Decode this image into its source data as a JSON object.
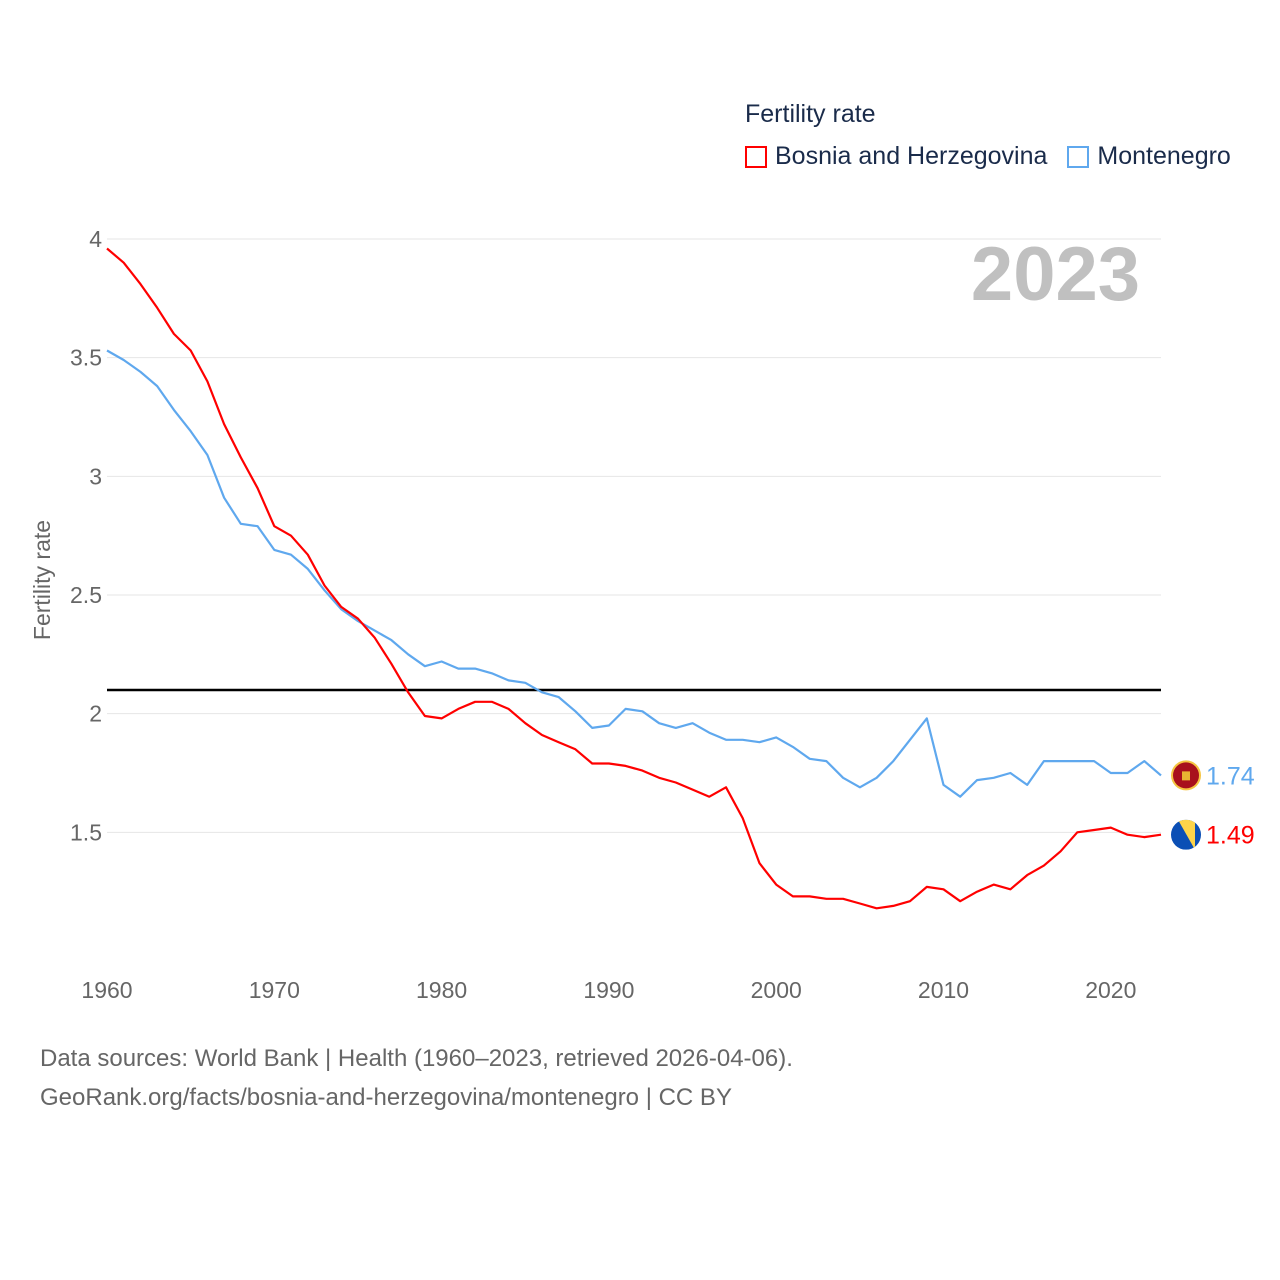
{
  "chart_data": {
    "type": "line",
    "title": "Fertility rate",
    "xlabel": "",
    "ylabel": "Fertility rate",
    "year_watermark": "2023",
    "xlim": [
      1960,
      2023
    ],
    "ylim": [
      0.92,
      4.0
    ],
    "x_ticks": [
      1960,
      1970,
      1980,
      1990,
      2000,
      2010,
      2020
    ],
    "y_ticks": [
      1.5,
      2,
      2.5,
      3,
      3.5,
      4
    ],
    "y_tick_labels": [
      "1.5",
      "2",
      "2.5",
      "3",
      "3.5",
      "4"
    ],
    "x_tick_labels": [
      "1960",
      "1970",
      "1980",
      "1990",
      "2000",
      "2010",
      "2020"
    ],
    "grid": true,
    "legend_position": "top-right",
    "reference_line": 2.1,
    "x": [
      1960,
      1961,
      1962,
      1963,
      1964,
      1965,
      1966,
      1967,
      1968,
      1969,
      1970,
      1971,
      1972,
      1973,
      1974,
      1975,
      1976,
      1977,
      1978,
      1979,
      1980,
      1981,
      1982,
      1983,
      1984,
      1985,
      1986,
      1987,
      1988,
      1989,
      1990,
      1991,
      1992,
      1993,
      1994,
      1995,
      1996,
      1997,
      1998,
      1999,
      2000,
      2001,
      2002,
      2003,
      2004,
      2005,
      2006,
      2007,
      2008,
      2009,
      2010,
      2011,
      2012,
      2013,
      2014,
      2015,
      2016,
      2017,
      2018,
      2019,
      2020,
      2021,
      2022,
      2023
    ],
    "series": [
      {
        "name": "Bosnia and Herzegovina",
        "color": "#ff0000",
        "end_label": "1.49",
        "values": [
          3.96,
          3.9,
          3.81,
          3.71,
          3.6,
          3.53,
          3.4,
          3.22,
          3.08,
          2.95,
          2.79,
          2.75,
          2.67,
          2.54,
          2.45,
          2.4,
          2.32,
          2.21,
          2.09,
          1.99,
          1.98,
          2.02,
          2.05,
          2.05,
          2.02,
          1.96,
          1.91,
          1.88,
          1.85,
          1.79,
          1.79,
          1.78,
          1.76,
          1.73,
          1.71,
          1.68,
          1.65,
          1.69,
          1.56,
          1.37,
          1.28,
          1.23,
          1.23,
          1.22,
          1.22,
          1.2,
          1.18,
          1.19,
          1.21,
          1.27,
          1.26,
          1.21,
          1.25,
          1.28,
          1.26,
          1.32,
          1.36,
          1.42,
          1.5,
          1.51,
          1.52,
          1.49,
          1.48,
          1.49
        ]
      },
      {
        "name": "Montenegro",
        "color": "#5fa8ee",
        "end_label": "1.74",
        "values": [
          3.53,
          3.49,
          3.44,
          3.38,
          3.28,
          3.19,
          3.09,
          2.91,
          2.8,
          2.79,
          2.69,
          2.67,
          2.61,
          2.52,
          2.44,
          2.39,
          2.35,
          2.31,
          2.25,
          2.2,
          2.22,
          2.19,
          2.19,
          2.17,
          2.14,
          2.13,
          2.09,
          2.07,
          2.01,
          1.94,
          1.95,
          2.02,
          2.01,
          1.96,
          1.94,
          1.96,
          1.92,
          1.89,
          1.89,
          1.88,
          1.9,
          1.86,
          1.81,
          1.8,
          1.73,
          1.69,
          1.73,
          1.8,
          1.89,
          1.98,
          1.7,
          1.65,
          1.72,
          1.73,
          1.75,
          1.7,
          1.8,
          1.8,
          1.8,
          1.8,
          1.75,
          1.75,
          1.8,
          1.74
        ]
      }
    ]
  },
  "footer": {
    "line1": "Data sources: World Bank | Health (1960–2023, retrieved 2026-04-06).",
    "line2": "GeoRank.org/facts/bosnia-and-herzegovina/montenegro | CC BY"
  }
}
